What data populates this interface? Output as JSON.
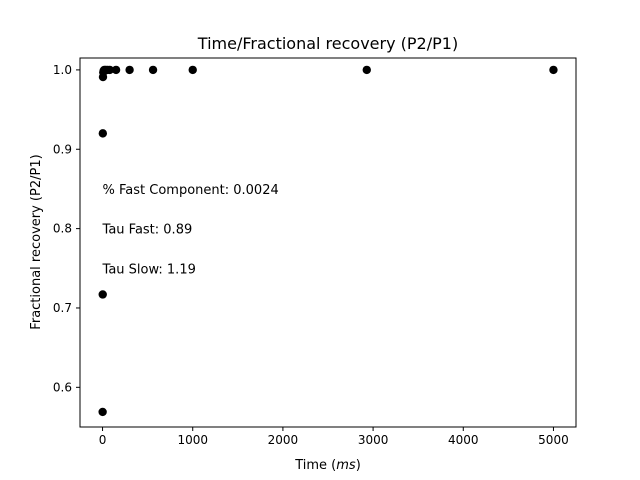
{
  "chart_data": {
    "type": "scatter",
    "title": "Time/Fractional recovery (P2/P1)",
    "xlabel": "Time",
    "xlabel_unit": "ms",
    "ylabel": "Fractional recovery (P2/P1)",
    "xlim": [
      -250,
      5250
    ],
    "ylim": [
      0.55,
      1.015
    ],
    "xticks": [
      0,
      1000,
      2000,
      3000,
      4000,
      5000
    ],
    "yticks": [
      0.6,
      0.7,
      0.8,
      0.9,
      1.0
    ],
    "xtick_labels": [
      "0",
      "1000",
      "2000",
      "3000",
      "4000",
      "5000"
    ],
    "ytick_labels": [
      "0.6",
      "0.7",
      "0.8",
      "0.9",
      "1.0"
    ],
    "grid": false,
    "marker_color": "#000000",
    "points": [
      {
        "x": 1,
        "y": 0.569
      },
      {
        "x": 2,
        "y": 0.717
      },
      {
        "x": 3,
        "y": 0.92
      },
      {
        "x": 5,
        "y": 0.991
      },
      {
        "x": 8,
        "y": 0.997
      },
      {
        "x": 12,
        "y": 0.999
      },
      {
        "x": 20,
        "y": 1.0
      },
      {
        "x": 35,
        "y": 1.0
      },
      {
        "x": 55,
        "y": 1.0
      },
      {
        "x": 80,
        "y": 1.0
      },
      {
        "x": 150,
        "y": 1.0
      },
      {
        "x": 300,
        "y": 1.0
      },
      {
        "x": 560,
        "y": 1.0
      },
      {
        "x": 1000,
        "y": 1.0
      },
      {
        "x": 2930,
        "y": 1.0
      },
      {
        "x": 5000,
        "y": 1.0
      }
    ],
    "annotations": [
      {
        "text": "% Fast Component: 0.0024",
        "x": 0,
        "y": 0.85
      },
      {
        "text": "Tau Fast: 0.89",
        "x": 0,
        "y": 0.8
      },
      {
        "text": "Tau Slow: 1.19",
        "x": 0,
        "y": 0.75
      }
    ]
  }
}
